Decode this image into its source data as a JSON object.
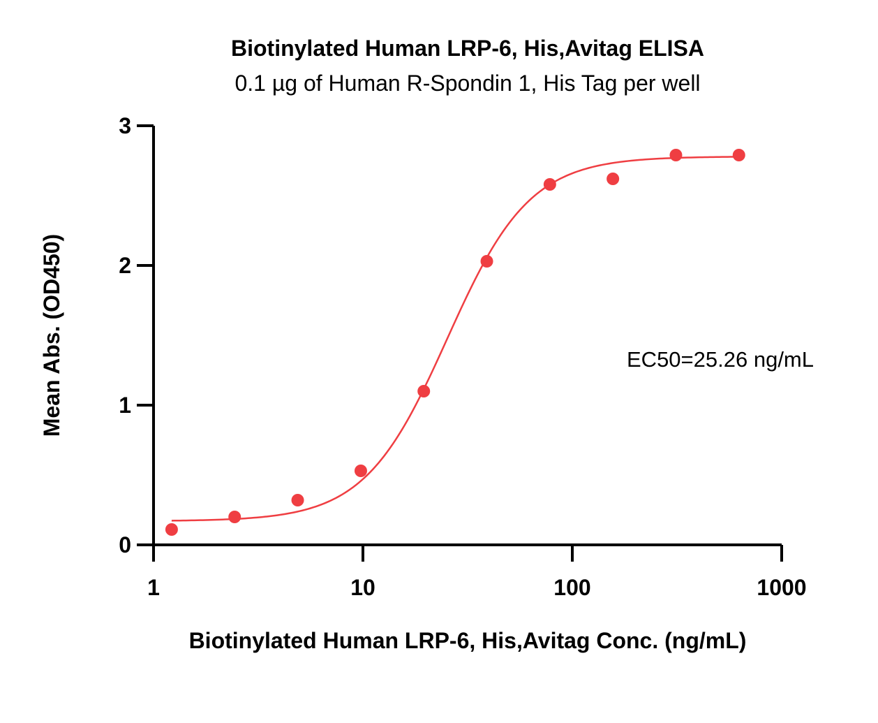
{
  "chart_data": {
    "type": "scatter",
    "title": "Biotinylated Human LRP-6, His,Avitag ELISA",
    "subtitle": "0.1 µg of Human R-Spondin 1, His Tag per well",
    "xlabel": "Biotinylated Human LRP-6, His,Avitag Conc. (ng/mL)",
    "ylabel": "Mean Abs. (OD450)",
    "x_scale": "log",
    "xlim": [
      1,
      1000
    ],
    "ylim": [
      0,
      3
    ],
    "x_ticks": [
      "1",
      "10",
      "100",
      "1000"
    ],
    "y_ticks": [
      "0",
      "1",
      "2",
      "3"
    ],
    "grid": false,
    "color": "#ef3e42",
    "series": [
      {
        "x": [
          1.22,
          2.44,
          4.88,
          9.77,
          19.53,
          39.06,
          78.13,
          156.25,
          312.5,
          625
        ],
        "y": [
          0.11,
          0.2,
          0.32,
          0.53,
          1.1,
          2.03,
          2.58,
          2.62,
          2.79,
          2.79
        ]
      }
    ],
    "fit": {
      "model": "4PL",
      "bottom": 0.17,
      "top": 2.78,
      "ec50": 25.26,
      "hill": 2.2
    },
    "annotation": "EC50=25.26 ng/mL"
  }
}
